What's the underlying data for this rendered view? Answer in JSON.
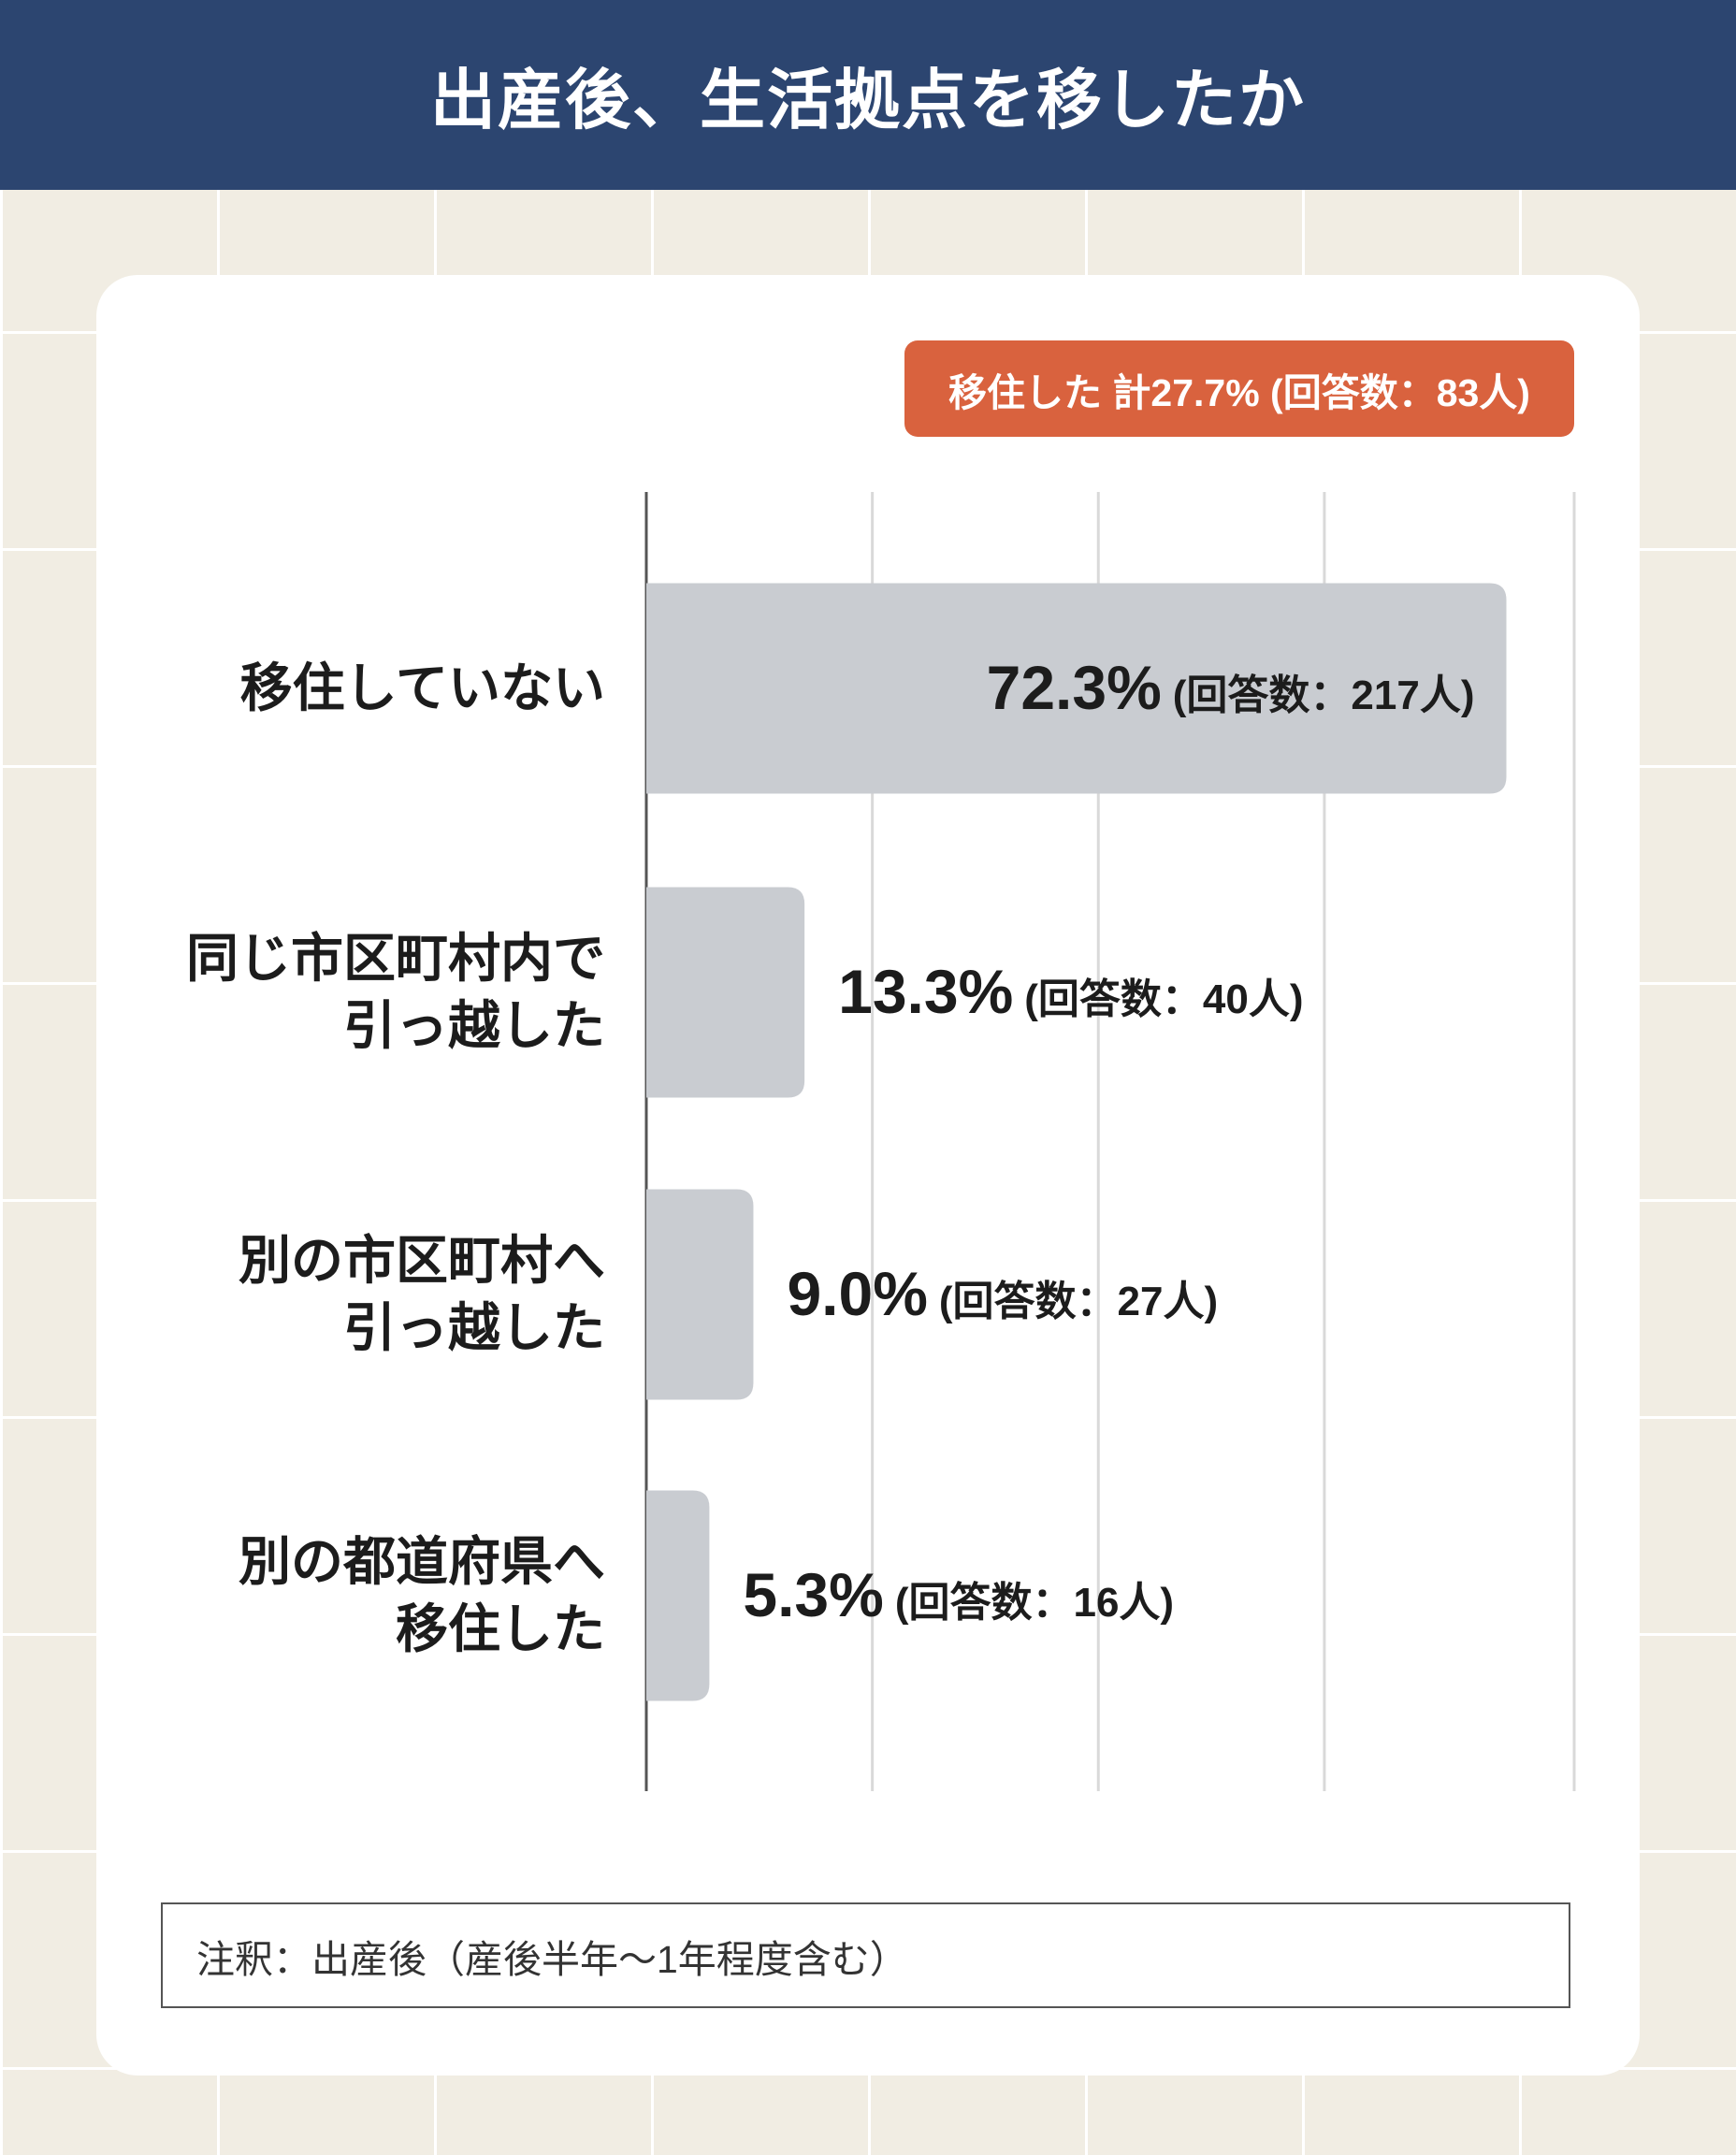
{
  "header": {
    "title": "出産後、生活拠点を移したか"
  },
  "chart_data": {
    "type": "bar",
    "orientation": "horizontal",
    "badge": "移住した 計27.7% (回答数：83人)",
    "categories": [
      "移住していない",
      "同じ市区町村内で\n引っ越した",
      "別の市区町村へ\n引っ越した",
      "別の都道府県へ\n移住した"
    ],
    "values": [
      72.3,
      13.3,
      9.0,
      5.3
    ],
    "value_labels": [
      "72.3%",
      "13.3%",
      "9.0%",
      "5.3%"
    ],
    "value_notes": [
      "(回答数：217人)",
      "(回答数：40人)",
      "(回答数：27人)",
      "(回答数：16人)"
    ],
    "color": "#c9ccd1",
    "xlim": [
      0,
      78
    ],
    "xticks": [
      19,
      38,
      57,
      78
    ],
    "grid": true
  },
  "note": "注釈：出産後（産後半年〜1年程度含む）"
}
